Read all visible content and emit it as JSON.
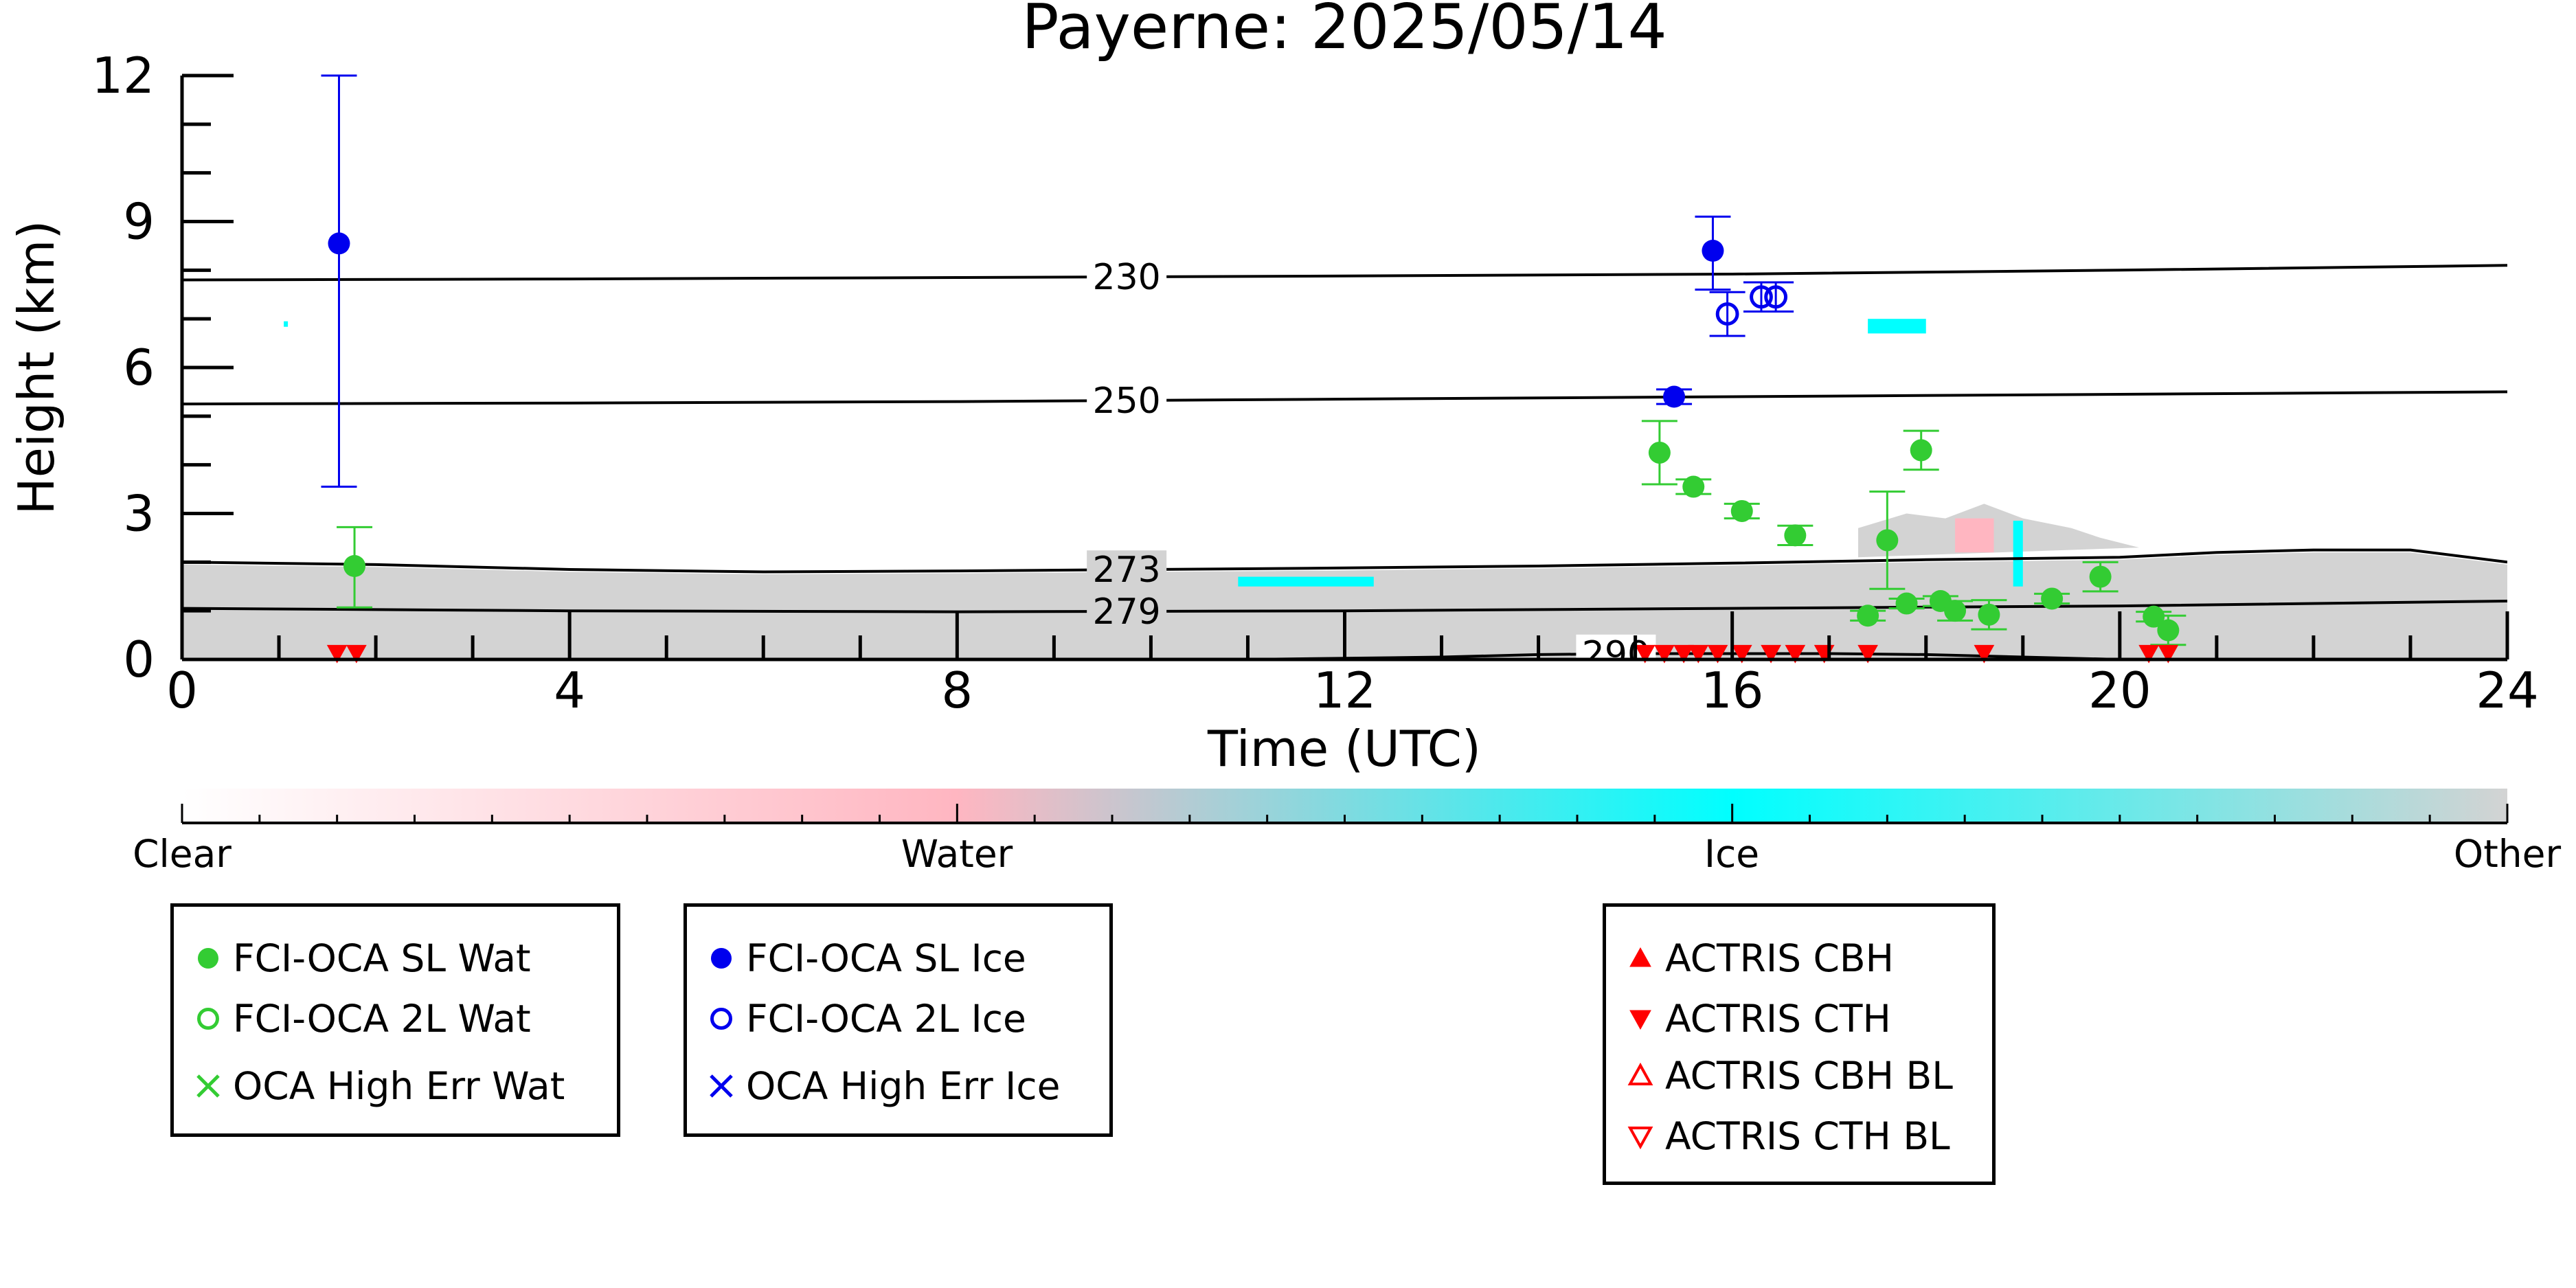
{
  "chart_data": {
    "type": "scatter",
    "title": "Payerne: 2025/05/14",
    "xlabel": "Time (UTC)",
    "ylabel": "Height (km)",
    "xlim": [
      0,
      24
    ],
    "ylim": [
      0,
      12
    ],
    "x_ticks": [
      0,
      4,
      8,
      12,
      16,
      20,
      24
    ],
    "x_tick_labels": [
      "0",
      "4",
      "8",
      "12",
      "16",
      "20",
      "24"
    ],
    "y_ticks": [
      0,
      3,
      6,
      9,
      12
    ],
    "y_tick_labels": [
      "0",
      "3",
      "6",
      "9",
      "12"
    ],
    "grid": false,
    "colorbar": {
      "labels": [
        "Clear",
        "Water",
        "Ice",
        "Other"
      ],
      "colors": [
        "#ffffff",
        "#ffb6c1",
        "#00ffff",
        "#d3d3d3"
      ]
    },
    "isotherms": [
      {
        "label": "230",
        "x": [
          0,
          4,
          8,
          12,
          16,
          20,
          24
        ],
        "y": [
          7.8,
          7.82,
          7.85,
          7.88,
          7.92,
          8.0,
          8.1
        ]
      },
      {
        "label": "250",
        "x": [
          0,
          4,
          8,
          12,
          16,
          20,
          24
        ],
        "y": [
          5.25,
          5.27,
          5.3,
          5.35,
          5.4,
          5.45,
          5.5
        ]
      },
      {
        "label": "273",
        "x": [
          0,
          2,
          4,
          6,
          8,
          10,
          12,
          14,
          16,
          18,
          20,
          21,
          22,
          23,
          24
        ],
        "y": [
          2.0,
          1.95,
          1.85,
          1.8,
          1.82,
          1.85,
          1.88,
          1.92,
          1.98,
          2.05,
          2.1,
          2.2,
          2.25,
          2.25,
          2.0
        ]
      },
      {
        "label": "279",
        "x": [
          0,
          4,
          8,
          12,
          16,
          20,
          24
        ],
        "y": [
          1.05,
          1.0,
          0.98,
          1.0,
          1.05,
          1.1,
          1.2
        ]
      },
      {
        "label": "290",
        "x": [
          11,
          13,
          14,
          15,
          16,
          17,
          18,
          19,
          20
        ],
        "y": [
          0.0,
          0.05,
          0.1,
          0.12,
          0.12,
          0.12,
          0.1,
          0.05,
          0.0
        ]
      }
    ],
    "series": [
      {
        "name": "FCI-OCA SL Wat",
        "color": "#33cc33",
        "marker": "filled-circle",
        "points": [
          {
            "x": 1.78,
            "y": 1.92,
            "err_lo": 0.85,
            "err_hi": 0.8
          },
          {
            "x": 15.25,
            "y": 4.25,
            "err_lo": 0.65,
            "err_hi": 0.65
          },
          {
            "x": 15.6,
            "y": 3.55,
            "err_lo": 0.15,
            "err_hi": 0.15
          },
          {
            "x": 16.1,
            "y": 3.05,
            "err_lo": 0.15,
            "err_hi": 0.15
          },
          {
            "x": 16.65,
            "y": 2.55,
            "err_lo": 0.2,
            "err_hi": 0.2
          },
          {
            "x": 17.4,
            "y": 0.9,
            "err_lo": 0.1,
            "err_hi": 0.1
          },
          {
            "x": 17.6,
            "y": 2.45,
            "err_lo": 1.0,
            "err_hi": 1.0
          },
          {
            "x": 17.8,
            "y": 1.15,
            "err_lo": 0.1,
            "err_hi": 0.1
          },
          {
            "x": 17.95,
            "y": 4.3,
            "err_lo": 0.4,
            "err_hi": 0.4
          },
          {
            "x": 18.15,
            "y": 1.2,
            "err_lo": 0.1,
            "err_hi": 0.1
          },
          {
            "x": 18.3,
            "y": 1.0,
            "err_lo": 0.2,
            "err_hi": 0.2
          },
          {
            "x": 18.65,
            "y": 0.92,
            "err_lo": 0.3,
            "err_hi": 0.3
          },
          {
            "x": 19.3,
            "y": 1.25,
            "err_lo": 0.1,
            "err_hi": 0.1
          },
          {
            "x": 19.8,
            "y": 1.7,
            "err_lo": 0.3,
            "err_hi": 0.3
          },
          {
            "x": 20.35,
            "y": 0.88,
            "err_lo": 0.1,
            "err_hi": 0.1
          },
          {
            "x": 20.5,
            "y": 0.6,
            "err_lo": 0.3,
            "err_hi": 0.3
          }
        ]
      },
      {
        "name": "FCI-OCA 2L Wat",
        "color": "#33cc33",
        "marker": "open-circle",
        "points": []
      },
      {
        "name": "OCA High Err Wat",
        "color": "#33cc33",
        "marker": "x",
        "points": []
      },
      {
        "name": "FCI-OCA SL Ice",
        "color": "#0000ee",
        "marker": "filled-circle",
        "points": [
          {
            "x": 1.62,
            "y": 8.55,
            "err_lo": 5.0,
            "err_hi": 3.45
          },
          {
            "x": 15.4,
            "y": 5.4,
            "err_lo": 0.15,
            "err_hi": 0.15
          },
          {
            "x": 15.8,
            "y": 8.4,
            "err_lo": 0.8,
            "err_hi": 0.7
          }
        ]
      },
      {
        "name": "FCI-OCA 2L Ice",
        "color": "#0000ee",
        "marker": "open-circle",
        "points": [
          {
            "x": 15.95,
            "y": 7.1,
            "err_lo": 0.45,
            "err_hi": 0.45
          },
          {
            "x": 16.3,
            "y": 7.45,
            "err_lo": 0.3,
            "err_hi": 0.3
          },
          {
            "x": 16.45,
            "y": 7.45,
            "err_lo": 0.3,
            "err_hi": 0.3
          }
        ]
      },
      {
        "name": "OCA High Err Ice",
        "color": "#0000ee",
        "marker": "x",
        "points": []
      },
      {
        "name": "ACTRIS CBH",
        "color": "#ff0000",
        "marker": "triangle-up",
        "points": []
      },
      {
        "name": "ACTRIS CTH",
        "color": "#ff0000",
        "marker": "triangle-down",
        "points": [
          {
            "x": 1.6,
            "y": 0.02
          },
          {
            "x": 1.8,
            "y": 0.02
          },
          {
            "x": 15.1,
            "y": 0.02
          },
          {
            "x": 15.3,
            "y": 0.02
          },
          {
            "x": 15.5,
            "y": 0.02
          },
          {
            "x": 15.65,
            "y": 0.02
          },
          {
            "x": 15.85,
            "y": 0.02
          },
          {
            "x": 16.1,
            "y": 0.02
          },
          {
            "x": 16.4,
            "y": 0.02
          },
          {
            "x": 16.65,
            "y": 0.02
          },
          {
            "x": 16.95,
            "y": 0.02
          },
          {
            "x": 17.4,
            "y": 0.02
          },
          {
            "x": 18.6,
            "y": 0.02
          },
          {
            "x": 20.3,
            "y": 0.02
          },
          {
            "x": 20.5,
            "y": 0.02
          }
        ]
      },
      {
        "name": "ACTRIS CBH BL",
        "color": "#ff0000",
        "marker": "open-triangle-up",
        "points": []
      },
      {
        "name": "ACTRIS CTH BL",
        "color": "#ff0000",
        "marker": "open-triangle-down",
        "points": []
      }
    ]
  },
  "legends": [
    {
      "items": [
        {
          "label": "FCI-OCA SL Wat",
          "marker": "filled-circle",
          "color": "#33cc33"
        },
        {
          "label": "FCI-OCA 2L Wat",
          "marker": "open-circle",
          "color": "#33cc33"
        },
        {
          "label": "OCA High Err Wat",
          "marker": "x",
          "color": "#33cc33"
        }
      ]
    },
    {
      "items": [
        {
          "label": "FCI-OCA SL Ice",
          "marker": "filled-circle",
          "color": "#0000ee"
        },
        {
          "label": "FCI-OCA 2L Ice",
          "marker": "open-circle",
          "color": "#0000ee"
        },
        {
          "label": "OCA High Err Ice",
          "marker": "x",
          "color": "#0000ee"
        }
      ]
    },
    {
      "items": [
        {
          "label": "ACTRIS CBH",
          "marker": "triangle-up",
          "color": "#ff0000"
        },
        {
          "label": "ACTRIS CTH",
          "marker": "triangle-down",
          "color": "#ff0000"
        },
        {
          "label": "ACTRIS CBH BL",
          "marker": "open-triangle-up",
          "color": "#ff0000"
        },
        {
          "label": "ACTRIS CTH BL",
          "marker": "open-triangle-down",
          "color": "#ff0000"
        }
      ]
    }
  ]
}
